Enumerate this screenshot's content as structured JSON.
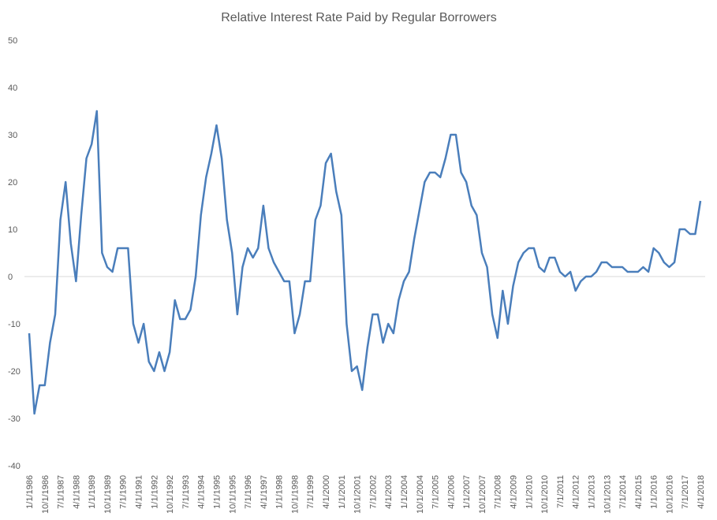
{
  "chart_data": {
    "type": "line",
    "title": "Relative Interest Rate Paid by Regular Borrowers",
    "categories": [
      "1/1/1986",
      null,
      null,
      "10/1/1986",
      null,
      null,
      "7/1/1987",
      null,
      null,
      "4/1/1988",
      null,
      null,
      "1/1/1989",
      null,
      null,
      "10/1/1989",
      null,
      null,
      "7/1/1990",
      null,
      null,
      "4/1/1991",
      null,
      null,
      "1/1/1992",
      null,
      null,
      "10/1/1992",
      null,
      null,
      "7/1/1993",
      null,
      null,
      "4/1/1994",
      null,
      null,
      "1/1/1995",
      null,
      null,
      "10/1/1995",
      null,
      null,
      "7/1/1996",
      null,
      null,
      "4/1/1997",
      null,
      null,
      "1/1/1998",
      null,
      null,
      "10/1/1998",
      null,
      null,
      "7/1/1999",
      null,
      null,
      "4/1/2000",
      null,
      null,
      "1/1/2001",
      null,
      null,
      "10/1/2001",
      null,
      null,
      "7/1/2002",
      null,
      null,
      "4/1/2003",
      null,
      null,
      "1/1/2004",
      null,
      null,
      "10/1/2004",
      null,
      null,
      "7/1/2005",
      null,
      null,
      "4/1/2006",
      null,
      null,
      "1/1/2007",
      null,
      null,
      "10/1/2007",
      null,
      null,
      "7/1/2008",
      null,
      null,
      "4/1/2009",
      null,
      null,
      "1/1/2010",
      null,
      null,
      "10/1/2010",
      null,
      null,
      "7/1/2011",
      null,
      null,
      "4/1/2012",
      null,
      null,
      "1/1/2013",
      null,
      null,
      "10/1/2013",
      null,
      null,
      "7/1/2014",
      null,
      null,
      "4/1/2015",
      null,
      null,
      "1/1/2016",
      null,
      null,
      "10/1/2016",
      null,
      null,
      "7/1/2017",
      null,
      null,
      "4/1/2018"
    ],
    "series": [
      {
        "name": "Relative Interest Rate",
        "color": "#4a7ebb",
        "values": [
          -12,
          -29,
          -23,
          -23,
          -14,
          -8,
          12,
          20,
          7,
          -1,
          13,
          25,
          28,
          35,
          5,
          2,
          1,
          6,
          6,
          6,
          -10,
          -14,
          -10,
          -18,
          -20,
          -16,
          -20,
          -16,
          -5,
          -9,
          -9,
          -7,
          0,
          13,
          21,
          26,
          32,
          25,
          12,
          5,
          -8,
          2,
          6,
          4,
          6,
          15,
          6,
          3,
          1,
          -1,
          -1,
          -12,
          -8,
          -1,
          -1,
          12,
          15,
          24,
          26,
          18,
          13,
          -10,
          -20,
          -19,
          -24,
          -15,
          -8,
          -8,
          -14,
          -10,
          -12,
          -5,
          -1,
          1,
          8,
          14,
          20,
          22,
          22,
          21,
          25,
          30,
          30,
          22,
          20,
          15,
          13,
          5,
          2,
          -8,
          -13,
          -3,
          -10,
          -2,
          3,
          5,
          6,
          6,
          2,
          1,
          4,
          4,
          1,
          0,
          1,
          -3,
          -1,
          0,
          0,
          1,
          3,
          3,
          2,
          2,
          2,
          1,
          1,
          1,
          2,
          1,
          6,
          5,
          3,
          2,
          3,
          10,
          10,
          9,
          9,
          16
        ]
      }
    ],
    "ylim": [
      -40,
      50
    ],
    "yticks": [
      -40,
      -30,
      -20,
      -10,
      0,
      10,
      20,
      30,
      40,
      50
    ],
    "grid": false
  }
}
